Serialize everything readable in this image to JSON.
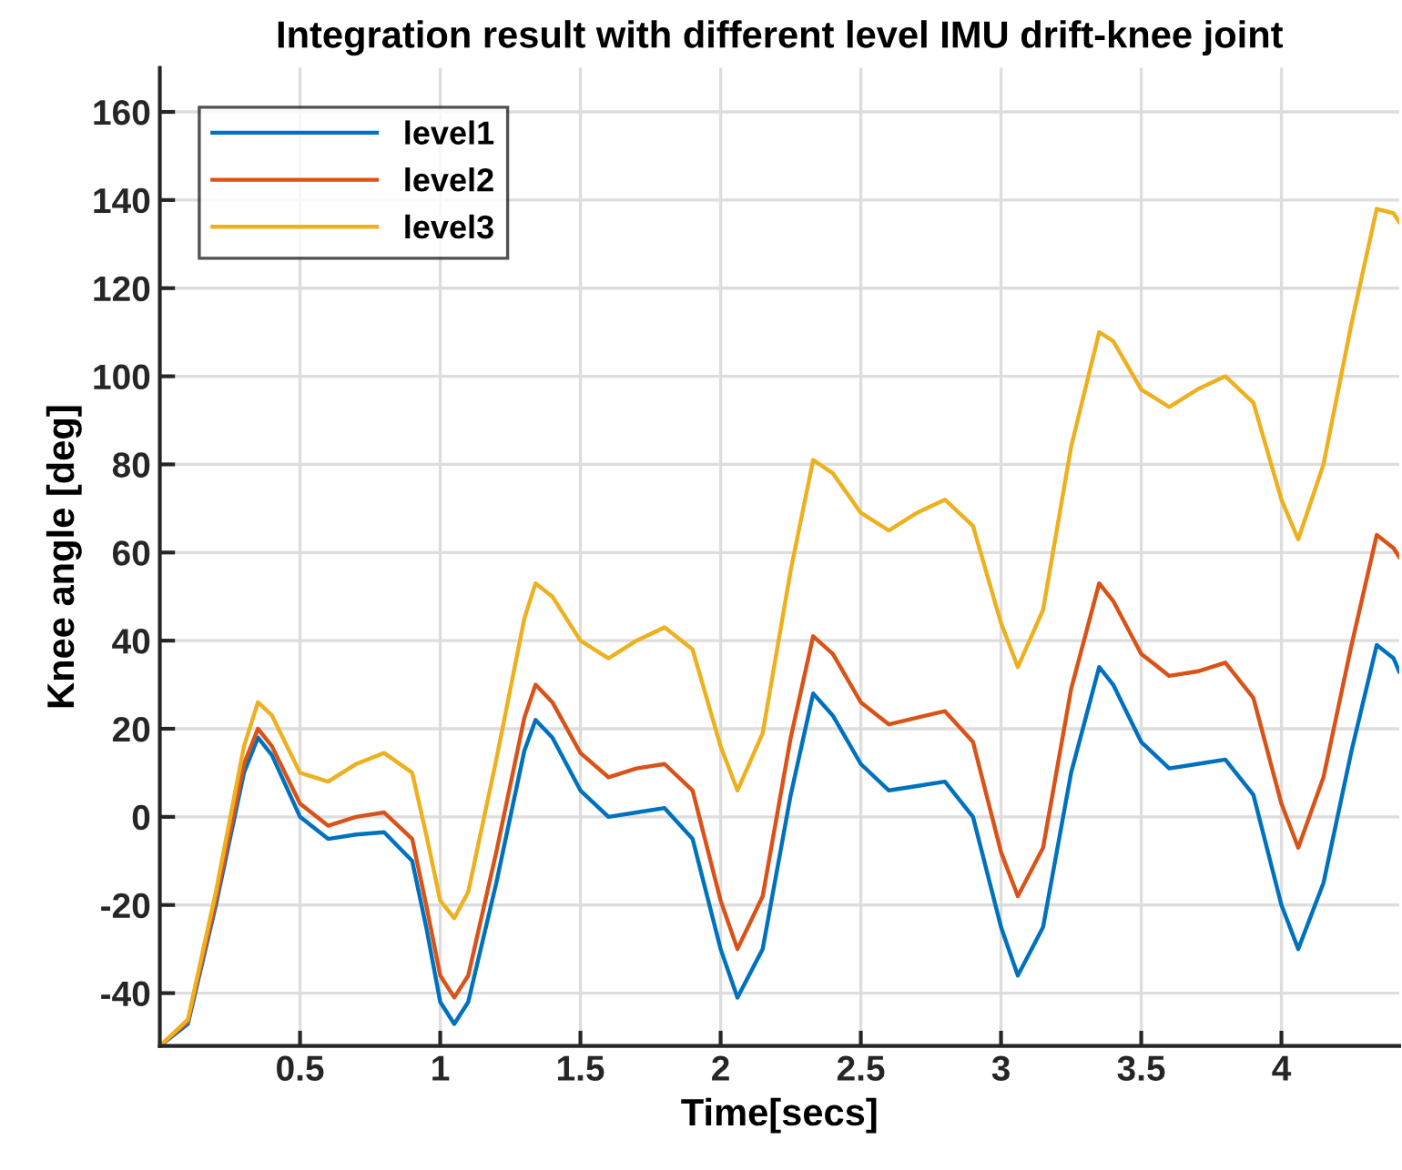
{
  "chart_data": {
    "type": "line",
    "title": "Integration result with different level IMU drift-knee joint",
    "xlabel": "Time[secs]",
    "ylabel": "Knee angle [deg]",
    "x": [
      0,
      0.1,
      0.2,
      0.3,
      0.35,
      0.4,
      0.5,
      0.6,
      0.7,
      0.8,
      0.9,
      0.95,
      1.0,
      1.05,
      1.1,
      1.2,
      1.3,
      1.34,
      1.4,
      1.5,
      1.6,
      1.7,
      1.8,
      1.9,
      2.0,
      2.06,
      2.15,
      2.25,
      2.33,
      2.4,
      2.5,
      2.6,
      2.7,
      2.8,
      2.9,
      3.0,
      3.06,
      3.15,
      3.25,
      3.35,
      3.4,
      3.5,
      3.6,
      3.7,
      3.8,
      3.9,
      4.0,
      4.06,
      4.15,
      4.25,
      4.34,
      4.4,
      4.42
    ],
    "series": [
      {
        "name": "level1",
        "color": "#0072bd",
        "values": [
          -52,
          -47,
          -20,
          10,
          18,
          14,
          0,
          -5,
          -4,
          -3.5,
          -10,
          -25,
          -42,
          -47,
          -42,
          -15,
          15,
          22,
          18,
          6,
          0,
          1,
          2,
          -5,
          -30,
          -41,
          -30,
          5,
          28,
          23,
          12,
          6,
          7,
          8,
          0,
          -25,
          -36,
          -25,
          10,
          34,
          30,
          17,
          11,
          12,
          13,
          5,
          -20,
          -30,
          -15,
          15,
          39,
          36,
          33
        ]
      },
      {
        "name": "level2",
        "color": "#d95319",
        "values": [
          -52,
          -46.5,
          -19,
          12,
          20,
          16,
          3,
          -2,
          0,
          1,
          -5,
          -20,
          -36,
          -41,
          -36,
          -8,
          22.5,
          30,
          26,
          14.5,
          9,
          11,
          12,
          6,
          -19,
          -30,
          -18,
          18,
          41,
          37,
          26,
          21,
          22.5,
          24,
          17,
          -8,
          -18,
          -7,
          29,
          53,
          49,
          37,
          32,
          33,
          35,
          27,
          3,
          -7,
          9,
          39,
          64,
          61,
          59
        ]
      },
      {
        "name": "level3",
        "color": "#edb120",
        "values": [
          -52,
          -46,
          -17,
          16,
          26,
          23,
          10,
          8,
          12,
          14.5,
          10,
          -4,
          -19,
          -23,
          -17,
          13,
          45,
          53,
          50,
          40,
          36,
          40,
          43,
          38,
          16,
          6,
          19,
          56,
          81,
          78,
          69,
          65,
          69,
          72,
          66,
          44,
          34,
          47,
          84,
          110,
          108,
          97,
          93,
          97,
          100,
          94,
          72,
          63,
          80,
          112,
          138,
          137,
          135
        ]
      }
    ],
    "xlim": [
      0,
      4.42
    ],
    "ylim": [
      -52,
      170
    ],
    "xticks": [
      0.5,
      1,
      1.5,
      2,
      2.5,
      3,
      3.5,
      4
    ],
    "yticks": [
      -40,
      -20,
      0,
      20,
      40,
      60,
      80,
      100,
      120,
      140,
      160
    ],
    "grid": true,
    "legend": "top left",
    "marker": "none",
    "line_style": "solid"
  }
}
